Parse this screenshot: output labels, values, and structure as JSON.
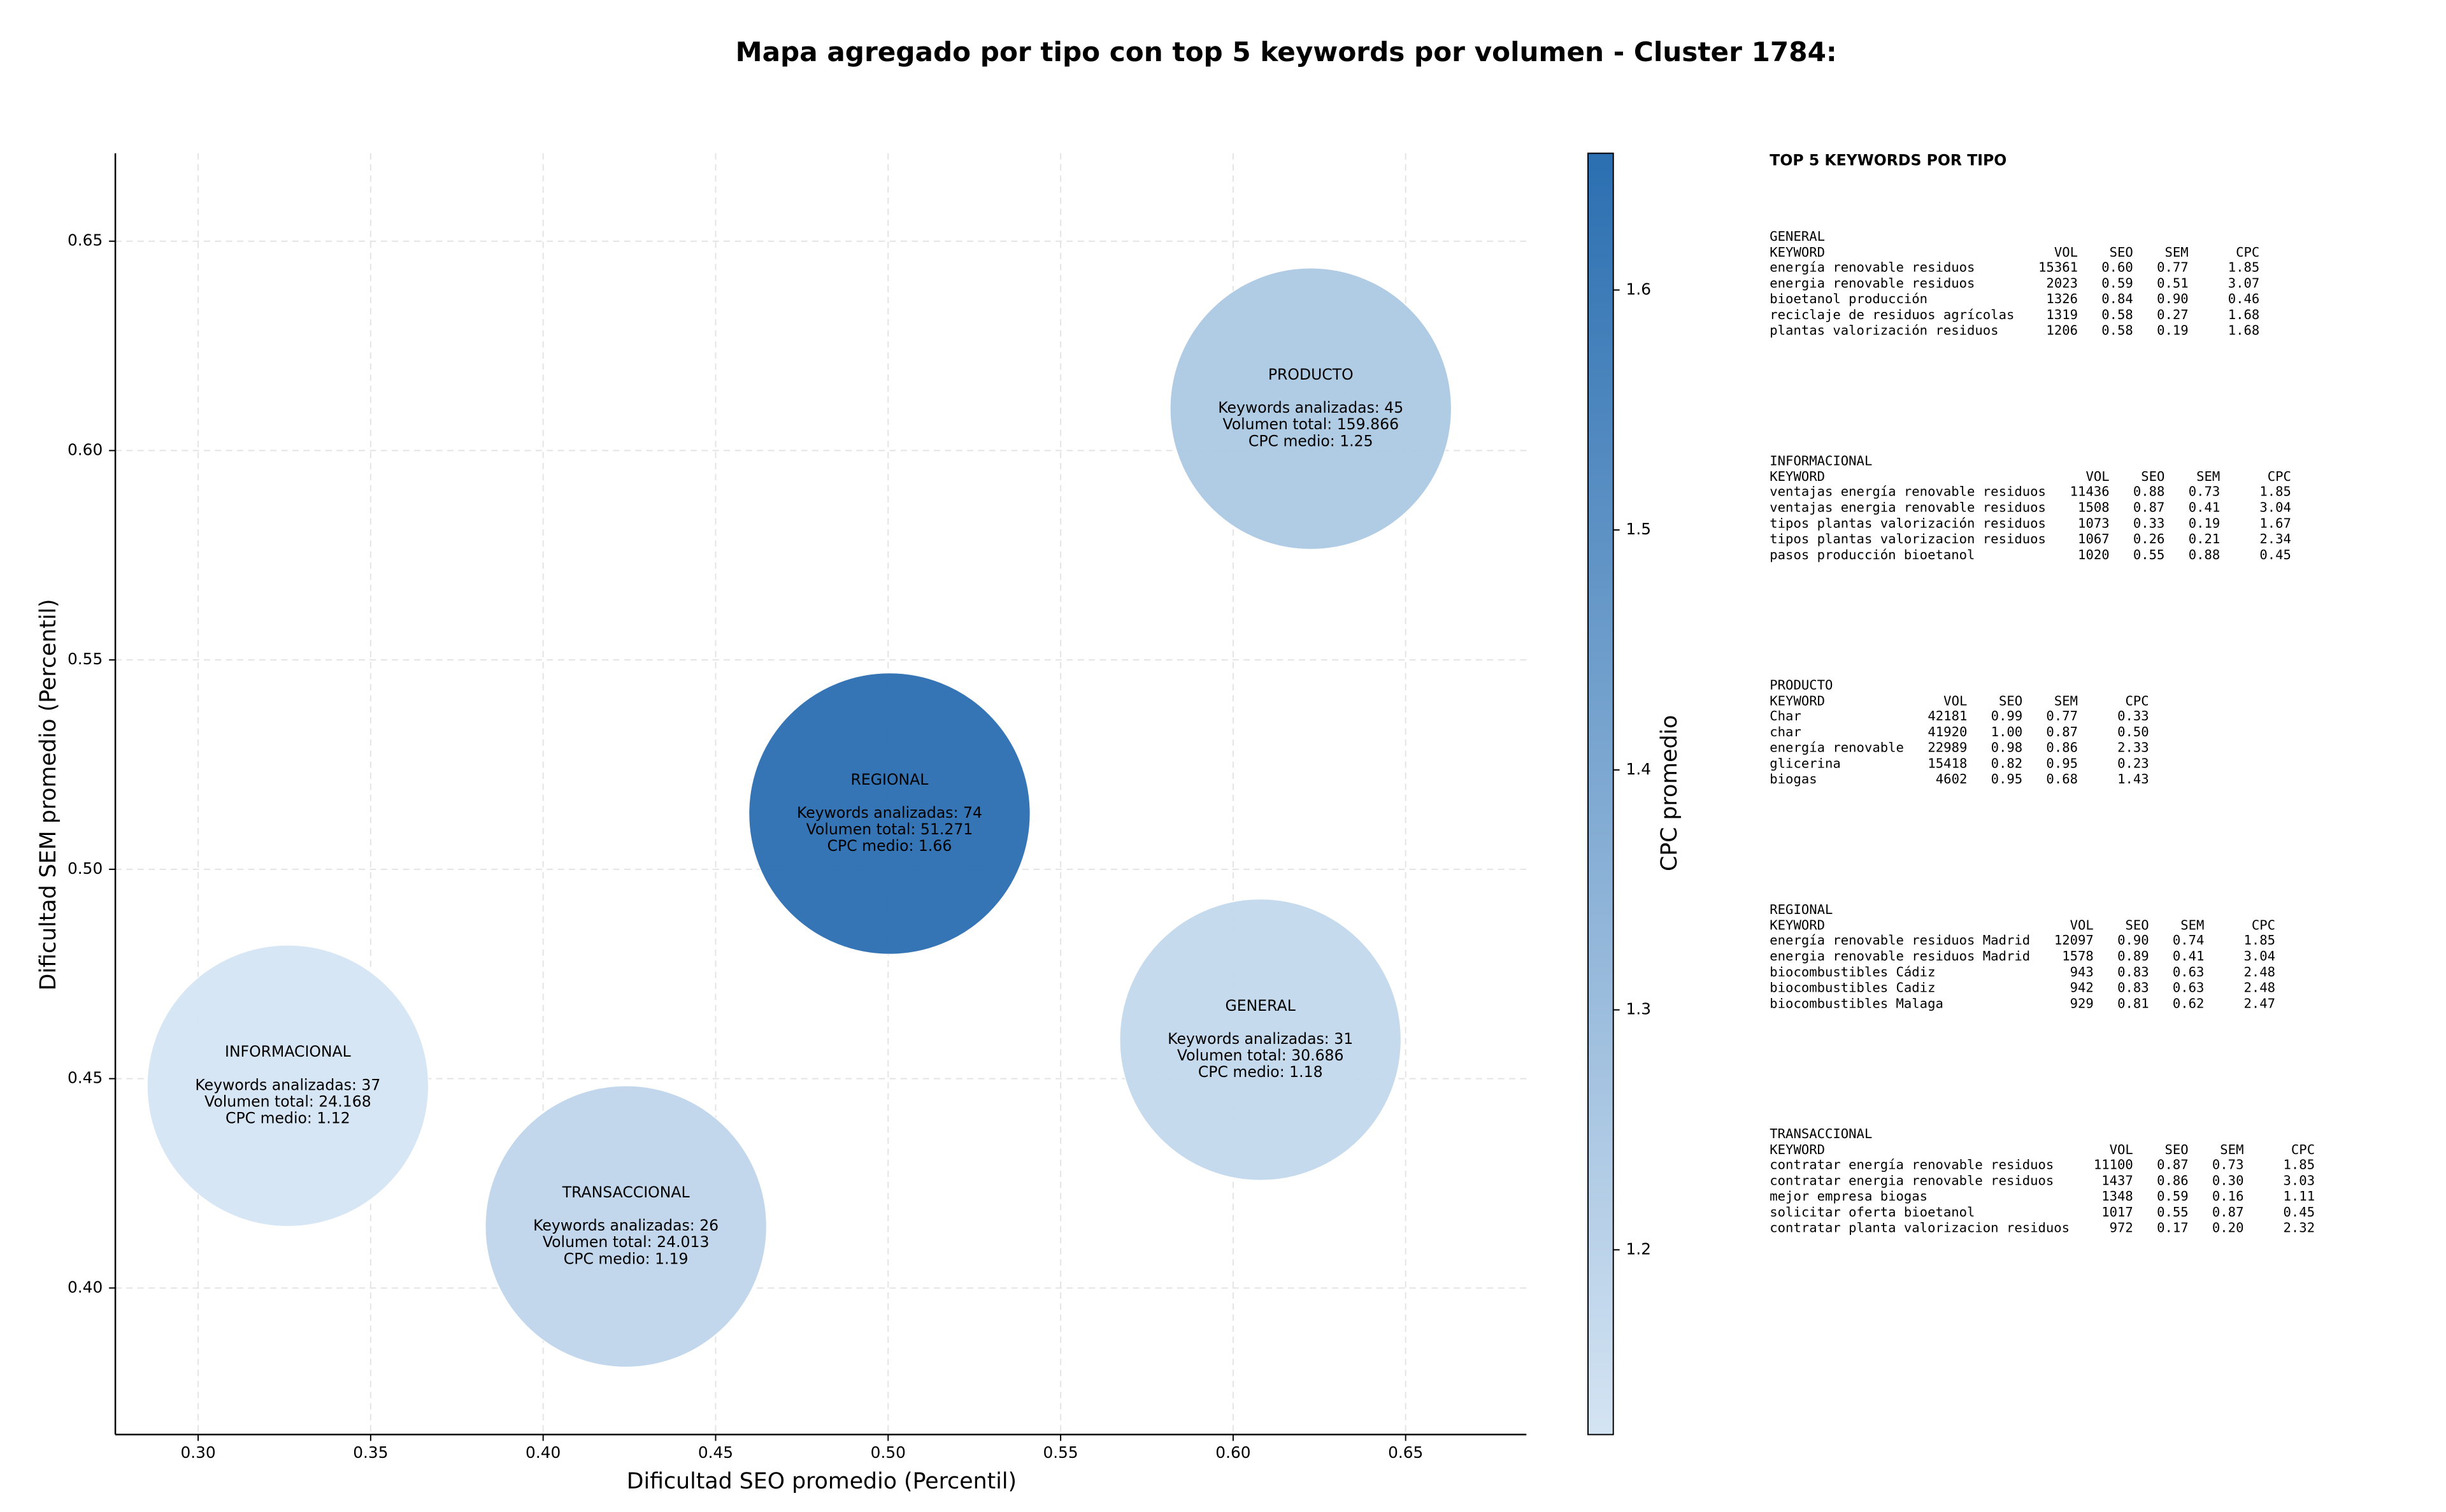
{
  "chart_data": {
    "type": "bubble",
    "title": "Mapa agregado por tipo con top 5 keywords por volumen - Cluster 1784:",
    "x_label": "Dificultad SEO promedio (Percentil)",
    "y_label": "Dificultad SEM promedio (Percentil)",
    "colorbar_label": "CPC promedio",
    "xlim": [
      0.276,
      0.685
    ],
    "ylim": [
      0.365,
      0.671
    ],
    "xticks": [
      {
        "value": 0.3,
        "label": "0.30"
      },
      0.35,
      {
        "value": 0.4,
        "label": "0.40"
      },
      0.45,
      {
        "value": 0.5,
        "label": "0.50"
      },
      0.55,
      {
        "value": 0.6,
        "label": "0.60"
      },
      0.65
    ],
    "yticks": [
      {
        "value": 0.4,
        "label": "0.40"
      },
      0.45,
      {
        "value": 0.5,
        "label": "0.50"
      },
      0.55,
      {
        "value": 0.6,
        "label": "0.60"
      },
      0.65
    ],
    "grid": true,
    "colorbar_lim": [
      1.123,
      1.657
    ],
    "colorbar_ticks": [
      1.2,
      1.3,
      1.4,
      1.5,
      1.6
    ],
    "colormap": [
      "#d4e4f3",
      "#2b6fb1"
    ],
    "x": [
      0.6225,
      0.5004,
      0.6079,
      0.326,
      0.424
    ],
    "values": [
      0.61,
      0.5133,
      0.4593,
      0.4483,
      0.4147
    ],
    "cpc": [
      1.25,
      1.66,
      1.18,
      1.12,
      1.19
    ],
    "point_labels": [
      {
        "title": "PRODUCTO",
        "lines": [
          "Keywords analizadas: 45",
          "Volumen total: 159.866",
          "CPC medio: 1.25"
        ]
      },
      {
        "title": "REGIONAL",
        "lines": [
          "Keywords analizadas: 74",
          "Volumen total: 51.271",
          "CPC medio: 1.66"
        ]
      },
      {
        "title": "GENERAL",
        "lines": [
          "Keywords analizadas: 31",
          "Volumen total: 30.686",
          "CPC medio: 1.18"
        ]
      },
      {
        "title": "INFORMACIONAL",
        "lines": [
          "Keywords analizadas: 37",
          "Volumen total: 24.168",
          "CPC medio: 1.12"
        ]
      },
      {
        "title": "TRANSACCIONAL",
        "lines": [
          "Keywords analizadas: 26",
          "Volumen total: 24.013",
          "CPC medio: 1.19"
        ]
      }
    ]
  },
  "side_panel": {
    "title": "TOP 5 KEYWORDS POR TIPO",
    "groups": [
      {
        "name": "GENERAL",
        "header": [
          "KEYWORD",
          "VOL",
          "SEO",
          "SEM",
          "CPC"
        ],
        "rows": [
          [
            "energía renovable residuos",
            "15361",
            "0.60",
            "0.77",
            "1.85"
          ],
          [
            "energia renovable residuos",
            "2023",
            "0.59",
            "0.51",
            "3.07"
          ],
          [
            "bioetanol producción",
            "1326",
            "0.84",
            "0.90",
            "0.46"
          ],
          [
            "reciclaje de residuos agrícolas",
            "1319",
            "0.58",
            "0.27",
            "1.68"
          ],
          [
            "plantas valorización residuos",
            "1206",
            "0.58",
            "0.19",
            "1.68"
          ]
        ]
      },
      {
        "name": "INFORMACIONAL",
        "header": [
          "KEYWORD",
          "VOL",
          "SEO",
          "SEM",
          "CPC"
        ],
        "rows": [
          [
            "ventajas energía renovable residuos",
            "11436",
            "0.88",
            "0.73",
            "1.85"
          ],
          [
            "ventajas energia renovable residuos",
            "1508",
            "0.87",
            "0.41",
            "3.04"
          ],
          [
            "tipos plantas valorización residuos",
            "1073",
            "0.33",
            "0.19",
            "1.67"
          ],
          [
            "tipos plantas valorizacion residuos",
            "1067",
            "0.26",
            "0.21",
            "2.34"
          ],
          [
            "pasos producción bioetanol",
            "1020",
            "0.55",
            "0.88",
            "0.45"
          ]
        ]
      },
      {
        "name": "PRODUCTO",
        "header": [
          "KEYWORD",
          "VOL",
          "SEO",
          "SEM",
          "CPC"
        ],
        "rows": [
          [
            "Char",
            "42181",
            "0.99",
            "0.77",
            "0.33"
          ],
          [
            "char",
            "41920",
            "1.00",
            "0.87",
            "0.50"
          ],
          [
            "energía renovable",
            "22989",
            "0.98",
            "0.86",
            "2.33"
          ],
          [
            "glicerina",
            "15418",
            "0.82",
            "0.95",
            "0.23"
          ],
          [
            "biogas",
            "4602",
            "0.95",
            "0.68",
            "1.43"
          ]
        ]
      },
      {
        "name": "REGIONAL",
        "header": [
          "KEYWORD",
          "VOL",
          "SEO",
          "SEM",
          "CPC"
        ],
        "rows": [
          [
            "energía renovable residuos Madrid",
            "12097",
            "0.90",
            "0.74",
            "1.85"
          ],
          [
            "energia renovable residuos Madrid",
            "1578",
            "0.89",
            "0.41",
            "3.04"
          ],
          [
            "biocombustibles Cádiz",
            "943",
            "0.83",
            "0.63",
            "2.48"
          ],
          [
            "biocombustibles Cadiz",
            "942",
            "0.83",
            "0.63",
            "2.48"
          ],
          [
            "biocombustibles Malaga",
            "929",
            "0.81",
            "0.62",
            "2.47"
          ]
        ]
      },
      {
        "name": "TRANSACCIONAL",
        "header": [
          "KEYWORD",
          "VOL",
          "SEO",
          "SEM",
          "CPC"
        ],
        "rows": [
          [
            "contratar energía renovable residuos",
            "11100",
            "0.87",
            "0.73",
            "1.85"
          ],
          [
            "contratar energia renovable residuos",
            "1437",
            "0.86",
            "0.30",
            "3.03"
          ],
          [
            "mejor empresa biogas",
            "1348",
            "0.59",
            "0.16",
            "1.11"
          ],
          [
            "solicitar oferta bioetanol",
            "1017",
            "0.55",
            "0.87",
            "0.45"
          ],
          [
            "contratar planta valorizacion residuos",
            "972",
            "0.17",
            "0.20",
            "2.32"
          ]
        ]
      }
    ]
  }
}
